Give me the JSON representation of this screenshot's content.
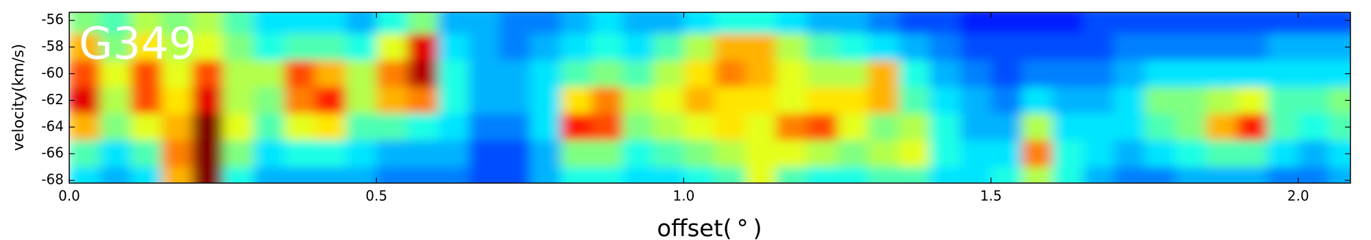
{
  "chart_data": {
    "type": "heatmap",
    "annotation": "G349",
    "xlabel": "offset( ° )",
    "ylabel": "velocity(km/s)",
    "xlim": [
      0,
      2.085
    ],
    "ylim": [
      -68.2,
      -55.4
    ],
    "xticks": [
      {
        "value": 0,
        "label": "0.0"
      },
      {
        "value": 0.5,
        "label": "0.5"
      },
      {
        "value": 1,
        "label": "1.0"
      },
      {
        "value": 1.5,
        "label": "1.5"
      },
      {
        "value": 2,
        "label": "2.0"
      }
    ],
    "yticks": [
      -56,
      -58,
      -60,
      -62,
      -64,
      -66,
      -68
    ],
    "colormap": "jet",
    "xbins": [
      0,
      0.05,
      0.1,
      0.15,
      0.2,
      0.25,
      0.3,
      0.35,
      0.4,
      0.45,
      0.5,
      0.55,
      0.6,
      0.65,
      0.7,
      0.75,
      0.8,
      0.85,
      0.9,
      0.95,
      1,
      1.05,
      1.1,
      1.15,
      1.2,
      1.25,
      1.3,
      1.35,
      1.4,
      1.45,
      1.5,
      1.55,
      1.6,
      1.65,
      1.7,
      1.75,
      1.8,
      1.85,
      1.9,
      1.95,
      2,
      2.05,
      2.1
    ],
    "ybins": [
      -55,
      -57,
      -59,
      -61,
      -63,
      -65,
      -67,
      -69
    ],
    "z": [
      [
        0.5,
        0.7,
        0.8,
        0.9,
        0.7,
        0.45,
        0.35
      ],
      [
        0.45,
        0.5,
        0.6,
        0.55,
        0.5,
        0.35,
        0.3
      ],
      [
        0.55,
        0.65,
        0.8,
        0.8,
        0.6,
        0.45,
        0.35
      ],
      [
        0.5,
        0.55,
        0.6,
        0.65,
        0.7,
        0.75,
        0.7
      ],
      [
        0.55,
        0.6,
        0.8,
        0.9,
        1,
        1,
        1
      ],
      [
        0.45,
        0.5,
        0.55,
        0.55,
        0.6,
        0.5,
        0.4
      ],
      [
        0.35,
        0.4,
        0.55,
        0.5,
        0.45,
        0.35,
        0.3
      ],
      [
        0.35,
        0.45,
        0.8,
        0.75,
        0.6,
        0.4,
        0.3
      ],
      [
        0.35,
        0.45,
        0.7,
        0.85,
        0.65,
        0.4,
        0.3
      ],
      [
        0.3,
        0.4,
        0.55,
        0.55,
        0.45,
        0.35,
        0.3
      ],
      [
        0.4,
        0.6,
        0.75,
        0.7,
        0.45,
        0.3,
        0.25
      ],
      [
        0.5,
        0.9,
        0.95,
        0.75,
        0.4,
        0.3,
        0.25
      ],
      [
        0.3,
        0.35,
        0.4,
        0.4,
        0.35,
        0.3,
        0.25
      ],
      [
        0.3,
        0.3,
        0.3,
        0.3,
        0.25,
        0.2,
        0.2
      ],
      [
        0.25,
        0.25,
        0.3,
        0.3,
        0.25,
        0.2,
        0.2
      ],
      [
        0.25,
        0.3,
        0.35,
        0.35,
        0.35,
        0.3,
        0.3
      ],
      [
        0.3,
        0.35,
        0.45,
        0.65,
        0.85,
        0.5,
        0.4
      ],
      [
        0.35,
        0.4,
        0.5,
        0.75,
        0.8,
        0.5,
        0.4
      ],
      [
        0.3,
        0.35,
        0.45,
        0.55,
        0.5,
        0.4,
        0.35
      ],
      [
        0.3,
        0.45,
        0.55,
        0.6,
        0.55,
        0.45,
        0.35
      ],
      [
        0.35,
        0.55,
        0.65,
        0.7,
        0.6,
        0.5,
        0.4
      ],
      [
        0.4,
        0.7,
        0.75,
        0.65,
        0.65,
        0.55,
        0.45
      ],
      [
        0.4,
        0.7,
        0.7,
        0.65,
        0.6,
        0.6,
        0.6
      ],
      [
        0.35,
        0.55,
        0.6,
        0.6,
        0.75,
        0.6,
        0.45
      ],
      [
        0.3,
        0.45,
        0.55,
        0.65,
        0.8,
        0.55,
        0.4
      ],
      [
        0.3,
        0.4,
        0.55,
        0.65,
        0.6,
        0.5,
        0.4
      ],
      [
        0.25,
        0.35,
        0.7,
        0.7,
        0.5,
        0.55,
        0.45
      ],
      [
        0.2,
        0.3,
        0.4,
        0.45,
        0.55,
        0.6,
        0.45
      ],
      [
        0.2,
        0.25,
        0.3,
        0.35,
        0.4,
        0.4,
        0.35
      ],
      [
        0.15,
        0.2,
        0.25,
        0.3,
        0.3,
        0.35,
        0.35
      ],
      [
        0.15,
        0.2,
        0.2,
        0.25,
        0.3,
        0.35,
        0.4
      ],
      [
        0.15,
        0.2,
        0.25,
        0.35,
        0.55,
        0.75,
        0.55
      ],
      [
        0.15,
        0.2,
        0.25,
        0.3,
        0.35,
        0.4,
        0.4
      ],
      [
        0.2,
        0.2,
        0.25,
        0.3,
        0.35,
        0.35,
        0.3
      ],
      [
        0.2,
        0.25,
        0.3,
        0.35,
        0.35,
        0.3,
        0.25
      ],
      [
        0.2,
        0.25,
        0.35,
        0.5,
        0.45,
        0.35,
        0.25
      ],
      [
        0.2,
        0.25,
        0.35,
        0.5,
        0.5,
        0.4,
        0.3
      ],
      [
        0.2,
        0.25,
        0.35,
        0.55,
        0.7,
        0.45,
        0.3
      ],
      [
        0.2,
        0.25,
        0.35,
        0.6,
        0.85,
        0.45,
        0.3
      ],
      [
        0.2,
        0.3,
        0.35,
        0.45,
        0.45,
        0.35,
        0.25
      ],
      [
        0.2,
        0.3,
        0.35,
        0.45,
        0.4,
        0.3,
        0.25
      ],
      [
        0.2,
        0.3,
        0.35,
        0.5,
        0.45,
        0.35,
        0.3
      ]
    ]
  }
}
